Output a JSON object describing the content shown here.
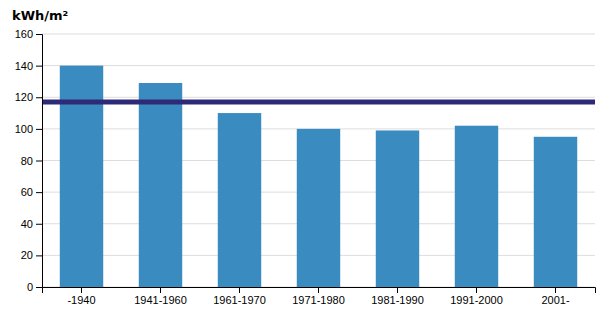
{
  "chart_data": {
    "type": "bar",
    "ylabel": "kWh/m²",
    "categories": [
      "-1940",
      "1941-1960",
      "1961-1970",
      "1971-1980",
      "1981-1990",
      "1991-2000",
      "2001-"
    ],
    "values": [
      140,
      129,
      110,
      100,
      99,
      102,
      95
    ],
    "color": "#3a8bbf",
    "hline": {
      "value": 117,
      "color": "#2e2a78"
    },
    "ylim": [
      0,
      160
    ],
    "yticks": [
      0,
      20,
      40,
      60,
      80,
      100,
      120,
      140,
      160
    ],
    "grid": true
  }
}
